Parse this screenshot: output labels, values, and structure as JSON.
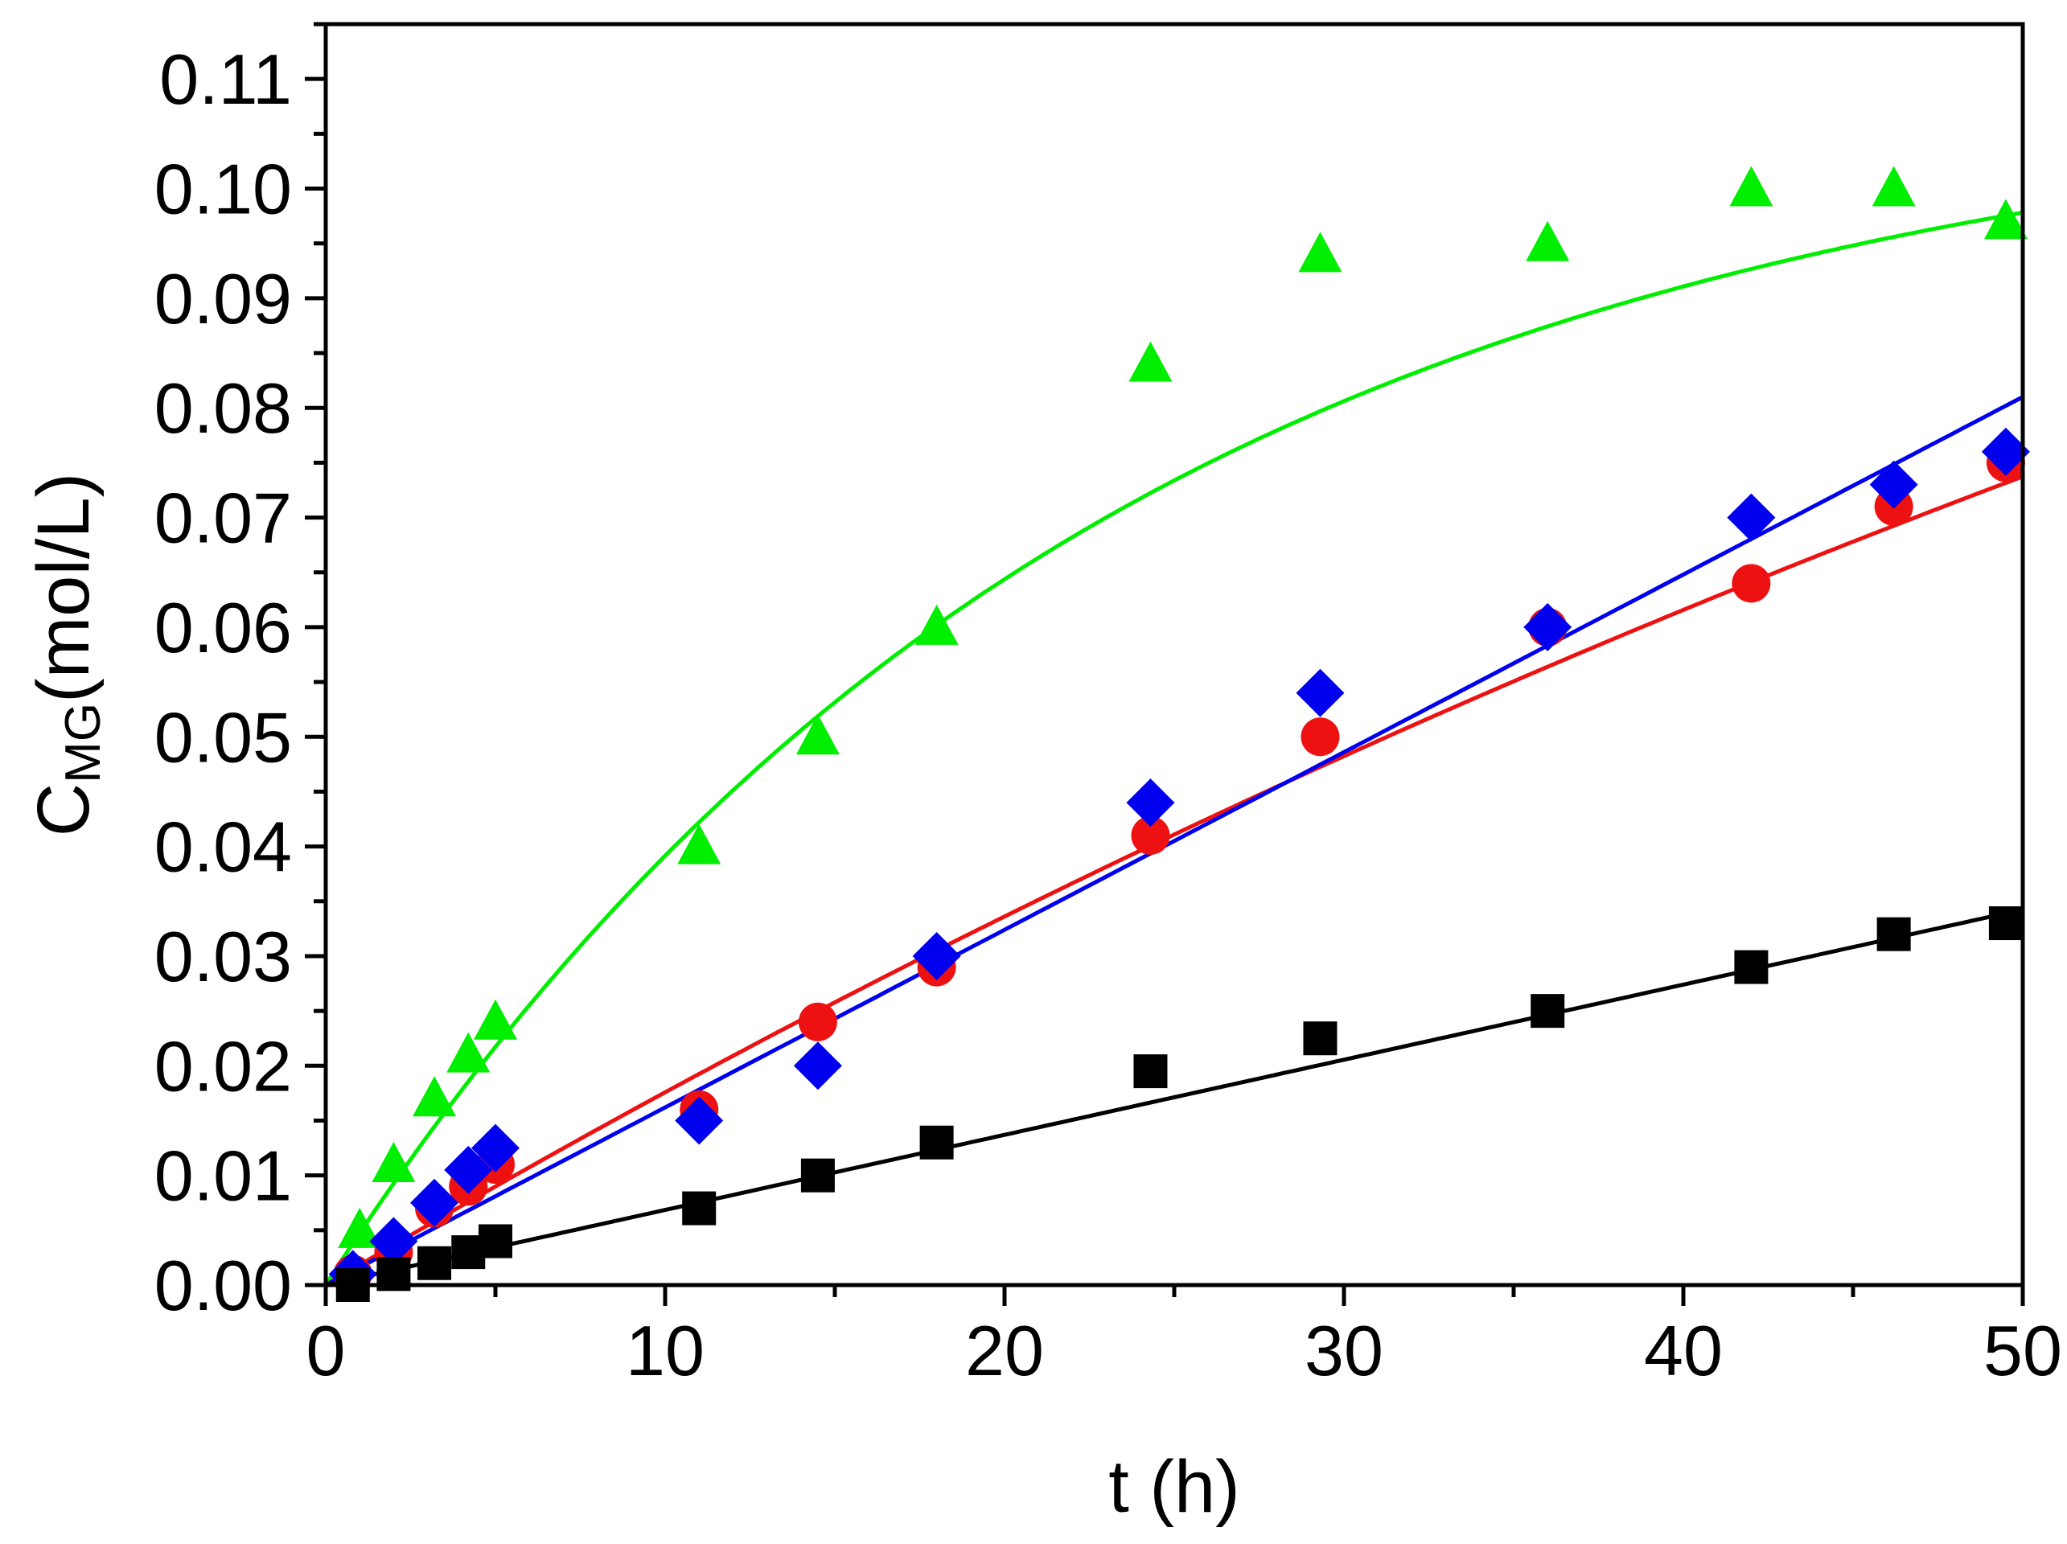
{
  "chart_data": {
    "type": "scatter",
    "xlabel": "t (h)",
    "ylabel_main": "C",
    "ylabel_sub": "MG",
    "ylabel_unit": "(mol/L)",
    "xlim": [
      0,
      50
    ],
    "ylim": [
      0,
      0.115
    ],
    "x_ticks": [
      {
        "value": 0,
        "label": "0"
      },
      {
        "value": 10,
        "label": "10"
      },
      {
        "value": 20,
        "label": "20"
      },
      {
        "value": 30,
        "label": "30"
      },
      {
        "value": 40,
        "label": "40"
      },
      {
        "value": 50,
        "label": "50"
      }
    ],
    "y_ticks": [
      {
        "value": 0.0,
        "label": "0.00"
      },
      {
        "value": 0.01,
        "label": "0.01"
      },
      {
        "value": 0.02,
        "label": "0.02"
      },
      {
        "value": 0.03,
        "label": "0.03"
      },
      {
        "value": 0.04,
        "label": "0.04"
      },
      {
        "value": 0.05,
        "label": "0.05"
      },
      {
        "value": 0.06,
        "label": "0.06"
      },
      {
        "value": 0.07,
        "label": "0.07"
      },
      {
        "value": 0.08,
        "label": "0.08"
      },
      {
        "value": 0.09,
        "label": "0.09"
      },
      {
        "value": 0.1,
        "label": "0.10"
      },
      {
        "value": 0.11,
        "label": "0.11"
      }
    ],
    "grid": false,
    "legend": "none",
    "series": [
      {
        "marker": "triangle",
        "color": "#00ee00",
        "x": [
          1.0,
          2.0,
          3.2,
          4.2,
          5.0,
          11.0,
          14.5,
          18.0,
          24.3,
          29.3,
          36.0,
          42.0,
          46.2,
          49.5
        ],
        "y": [
          0.005,
          0.011,
          0.017,
          0.021,
          0.024,
          0.04,
          0.05,
          0.06,
          0.084,
          0.094,
          0.095,
          0.1,
          0.1,
          0.097
        ],
        "fit_curve": {
          "type": "exponential",
          "a": 0.11,
          "k": 0.044
        }
      },
      {
        "marker": "circle",
        "color": "#ee1111",
        "x": [
          0.8,
          2.0,
          3.2,
          4.2,
          5.0,
          11.0,
          14.5,
          18.0,
          24.3,
          29.3,
          36.0,
          42.0,
          46.2,
          49.5
        ],
        "y": [
          0.001,
          0.003,
          0.007,
          0.009,
          0.011,
          0.016,
          0.024,
          0.029,
          0.041,
          0.05,
          0.06,
          0.064,
          0.071,
          0.075
        ],
        "fit_curve": {
          "type": "exponential",
          "a": 0.2,
          "k": 0.0092
        }
      },
      {
        "marker": "diamond",
        "color": "#0000ee",
        "x": [
          0.8,
          2.0,
          3.2,
          4.2,
          5.0,
          11.0,
          14.5,
          18.0,
          24.3,
          29.3,
          36.0,
          42.0,
          46.2,
          49.5
        ],
        "y": [
          0.001,
          0.004,
          0.0075,
          0.0105,
          0.0125,
          0.015,
          0.02,
          0.03,
          0.044,
          0.054,
          0.06,
          0.07,
          0.073,
          0.076
        ],
        "fit_curve": {
          "type": "linear",
          "slope": 0.00162,
          "intercept": 0.0
        }
      },
      {
        "marker": "square",
        "color": "#000000",
        "x": [
          0.8,
          2.0,
          3.2,
          4.2,
          5.0,
          11.0,
          14.5,
          18.0,
          24.3,
          29.3,
          36.0,
          42.0,
          46.2,
          49.5
        ],
        "y": [
          0.0,
          0.001,
          0.002,
          0.003,
          0.004,
          0.007,
          0.01,
          0.013,
          0.0195,
          0.0225,
          0.025,
          0.029,
          0.032,
          0.033
        ],
        "fit_curve": {
          "type": "linear",
          "slope": 0.000685,
          "intercept": 0.0
        }
      }
    ]
  }
}
